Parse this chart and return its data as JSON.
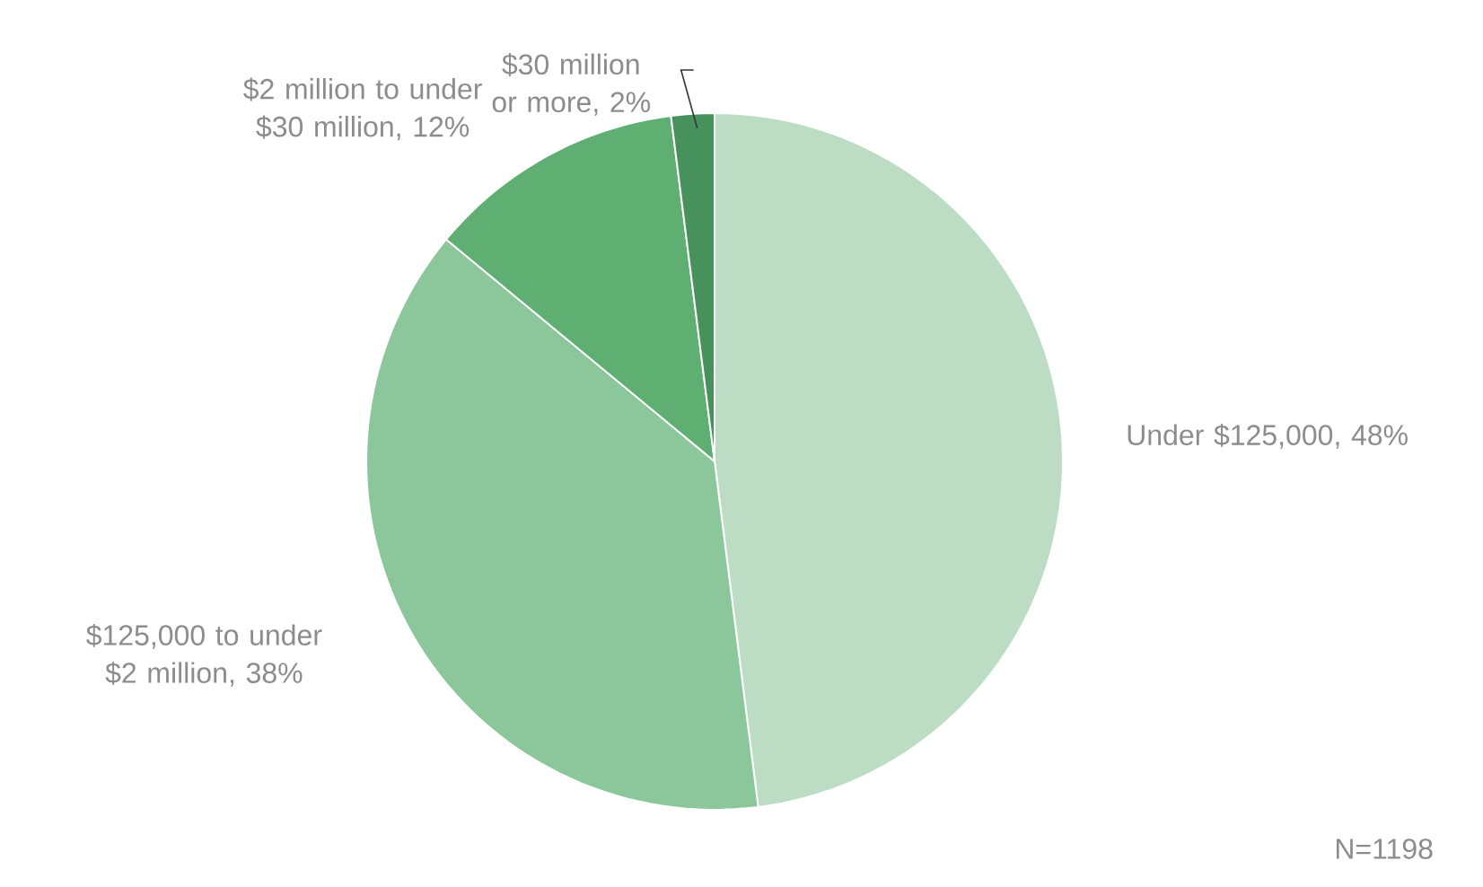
{
  "chart_data": {
    "type": "pie",
    "categories": [
      "Under $125,000",
      "$125,000 to under $2 million",
      "$2 million to under $30 million",
      "$30 million or more"
    ],
    "values": [
      48,
      38,
      12,
      2
    ],
    "value_labels": [
      ", 48%",
      ", 38%",
      ", 12%",
      ", 2%"
    ],
    "colors": [
      "#bddcc4",
      "#8cc79b",
      "#5fae72",
      "#47915d"
    ],
    "annotations": [
      "N=1198"
    ]
  }
}
